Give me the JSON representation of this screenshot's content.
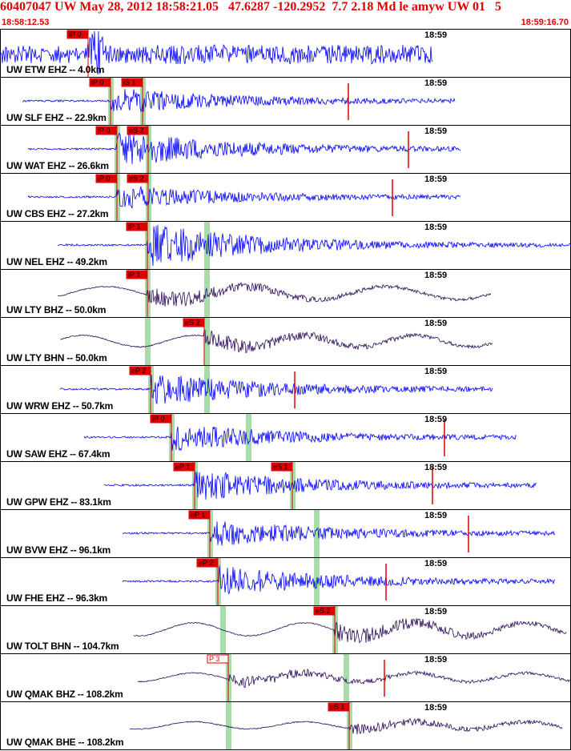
{
  "header": {
    "title": "60407047 UW May 28, 2012 18:58:21.05   47.6287 -120.2952  7.7 2.18 Md le amyw UW 01   5",
    "start_time": "18:58:12.53",
    "end_time": "18:59:16.70"
  },
  "colors": {
    "header_text": "#e00000",
    "trace_blue": "#0000ff",
    "trace_purple": "#2a0a5a",
    "pick_red": "#e00000",
    "window_green": "#a8dca8",
    "row_border": "#000000"
  },
  "traces": [
    {
      "label": "UW ETW EHZ -- 4.0km",
      "time": "18:59",
      "color": "blue",
      "picks": [
        "iP 0"
      ]
    },
    {
      "label": "UW SLF EHZ -- 22.9km",
      "time": "18:59",
      "color": "blue",
      "picks": [
        "iP 0",
        "iS 1"
      ]
    },
    {
      "label": "UW WAT EHZ -- 26.6km",
      "time": "18:59",
      "color": "blue",
      "picks": [
        "iP 0",
        "eS 2"
      ]
    },
    {
      "label": "UW CBS EHZ -- 27.2km",
      "time": "18:59",
      "color": "blue",
      "picks": [
        "iP 0",
        "eS 2"
      ]
    },
    {
      "label": "UW NEL EHZ -- 49.2km",
      "time": "18:59",
      "color": "blue",
      "picks": [
        "iP 1"
      ]
    },
    {
      "label": "UW LTY BHZ -- 50.0km",
      "time": "18:59",
      "color": "purple",
      "picks": [
        "iP 1"
      ]
    },
    {
      "label": "UW LTY BHN -- 50.0km",
      "time": "18:59",
      "color": "purple",
      "picks": [
        "eS 2"
      ]
    },
    {
      "label": "UW WRW EHZ -- 50.7km",
      "time": "18:59",
      "color": "blue",
      "picks": [
        "eP 2"
      ]
    },
    {
      "label": "UW SAW EHZ -- 67.4km",
      "time": "18:59",
      "color": "blue",
      "picks": [
        "iP 0"
      ]
    },
    {
      "label": "UW GPW EHZ -- 83.1km",
      "time": "18:59",
      "color": "blue",
      "picks": [
        "eP 1",
        "eS 1"
      ]
    },
    {
      "label": "UW BVW EHZ -- 96.1km",
      "time": "18:59",
      "color": "blue",
      "picks": [
        "eP 1"
      ]
    },
    {
      "label": "UW FHE EHZ -- 96.3km",
      "time": "18:59",
      "color": "blue",
      "picks": [
        "eP 2"
      ]
    },
    {
      "label": "UW TOLT BHN -- 104.7km",
      "time": "18:59",
      "color": "purple",
      "picks": [
        "eS 2"
      ]
    },
    {
      "label": "UW QMAK BHZ -- 108.2km",
      "time": "18:59",
      "color": "purple",
      "picks": [
        "P 3"
      ]
    },
    {
      "label": "UW QMAK BHE -- 108.2km",
      "time": "18:59",
      "color": "purple",
      "picks": [
        "eS 1"
      ]
    }
  ]
}
